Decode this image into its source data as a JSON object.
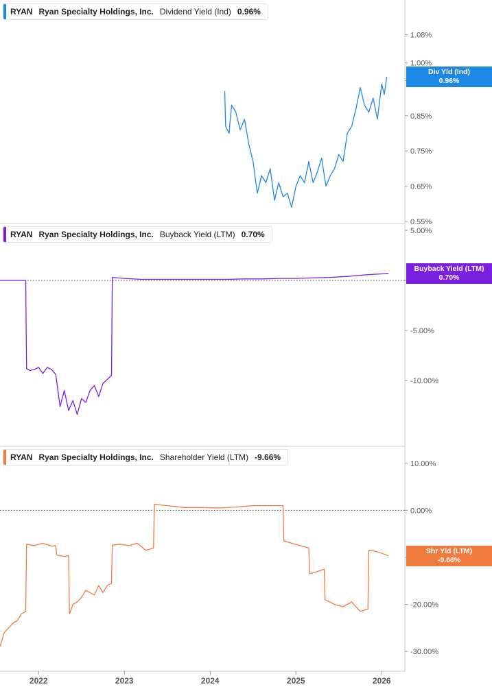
{
  "chart_data": [
    {
      "type": "line",
      "ticker": "RYAN",
      "company": "Ryan Specialty Holdings, Inc.",
      "metric": "Dividend Yield (Ind)",
      "current_value": "0.96%",
      "tag": {
        "label": "Div Yld (Ind)",
        "value": "0.96%"
      },
      "color": "#1e88e5",
      "ylim": [
        0.55,
        1.12
      ],
      "y_ticks": [
        {
          "value": 1.08,
          "label": "1.08%"
        },
        {
          "value": 1.0,
          "label": "1.00%"
        },
        {
          "value": 0.95,
          "label": "0.95%"
        },
        {
          "value": 0.85,
          "label": "0.85%"
        },
        {
          "value": 0.75,
          "label": "0.75%"
        },
        {
          "value": 0.65,
          "label": "0.65%"
        },
        {
          "value": 0.55,
          "label": "0.55%"
        }
      ],
      "x": [
        2024.17,
        2024.18,
        2024.22,
        2024.25,
        2024.3,
        2024.35,
        2024.4,
        2024.45,
        2024.5,
        2024.55,
        2024.6,
        2024.65,
        2024.7,
        2024.75,
        2024.8,
        2024.85,
        2024.9,
        2024.95,
        2025.0,
        2025.05,
        2025.1,
        2025.15,
        2025.2,
        2025.25,
        2025.3,
        2025.35,
        2025.4,
        2025.45,
        2025.5,
        2025.55,
        2025.6,
        2025.65,
        2025.7,
        2025.75,
        2025.8,
        2025.85,
        2025.9,
        2025.95,
        2026.0,
        2026.03,
        2026.06
      ],
      "values": [
        0.92,
        0.82,
        0.8,
        0.88,
        0.86,
        0.81,
        0.84,
        0.77,
        0.72,
        0.63,
        0.68,
        0.66,
        0.7,
        0.61,
        0.66,
        0.62,
        0.63,
        0.59,
        0.65,
        0.68,
        0.66,
        0.72,
        0.66,
        0.69,
        0.73,
        0.65,
        0.68,
        0.7,
        0.74,
        0.72,
        0.8,
        0.82,
        0.87,
        0.93,
        0.88,
        0.86,
        0.9,
        0.84,
        0.94,
        0.91,
        0.96
      ]
    },
    {
      "type": "line",
      "ticker": "RYAN",
      "company": "Ryan Specialty Holdings, Inc.",
      "metric": "Buyback Yield (LTM)",
      "current_value": "0.70%",
      "tag": {
        "label": "Buyback Yield (LTM)",
        "value": "0.70%"
      },
      "color": "#7b1fe0",
      "ylim": [
        -15,
        5
      ],
      "zero_line": true,
      "y_ticks": [
        {
          "value": 5,
          "label": "5.00%"
        },
        {
          "value": 0,
          "label": "0.00%"
        },
        {
          "value": -5,
          "label": "-5.00%"
        },
        {
          "value": -10,
          "label": "-10.00%"
        }
      ],
      "x": [
        2021.55,
        2021.7,
        2021.85,
        2021.86,
        2021.9,
        2021.95,
        2022.0,
        2022.05,
        2022.1,
        2022.15,
        2022.2,
        2022.25,
        2022.3,
        2022.35,
        2022.4,
        2022.45,
        2022.5,
        2022.55,
        2022.6,
        2022.65,
        2022.7,
        2022.75,
        2022.8,
        2022.85,
        2022.86,
        2023.0,
        2023.2,
        2023.4,
        2023.6,
        2023.8,
        2024.0,
        2024.2,
        2024.4,
        2024.6,
        2024.8,
        2025.0,
        2025.2,
        2025.4,
        2025.6,
        2025.8,
        2025.9,
        2026.0,
        2026.08
      ],
      "values": [
        0.0,
        0.0,
        0.0,
        -8.8,
        -9.0,
        -8.9,
        -8.7,
        -9.3,
        -8.7,
        -8.9,
        -9.4,
        -12.6,
        -11.0,
        -13.0,
        -12.0,
        -13.4,
        -11.8,
        -12.2,
        -11.0,
        -10.5,
        -11.6,
        -10.3,
        -9.9,
        -9.5,
        0.3,
        0.2,
        0.1,
        0.1,
        0.1,
        0.1,
        0.1,
        0.1,
        0.15,
        0.15,
        0.2,
        0.2,
        0.25,
        0.3,
        0.4,
        0.55,
        0.6,
        0.65,
        0.7
      ]
    },
    {
      "type": "line",
      "ticker": "RYAN",
      "company": "Ryan Specialty Holdings, Inc.",
      "metric": "Shareholder Yield (LTM)",
      "current_value": "-9.66%",
      "tag": {
        "label": "Shr Yld (LTM)",
        "value": "-9.66%"
      },
      "color": "#f07b3f",
      "ylim": [
        -31,
        11
      ],
      "zero_line": true,
      "y_ticks": [
        {
          "value": 10,
          "label": "10.00%"
        },
        {
          "value": 0,
          "label": "0.00%"
        },
        {
          "value": -10,
          "label": "-10.00%"
        },
        {
          "value": -20,
          "label": "-20.00%"
        },
        {
          "value": -30,
          "label": "-30.00%"
        }
      ],
      "x": [
        2021.55,
        2021.6,
        2021.65,
        2021.7,
        2021.75,
        2021.8,
        2021.85,
        2021.86,
        2021.95,
        2022.05,
        2022.15,
        2022.2,
        2022.21,
        2022.3,
        2022.35,
        2022.36,
        2022.4,
        2022.45,
        2022.5,
        2022.55,
        2022.6,
        2022.65,
        2022.7,
        2022.75,
        2022.8,
        2022.85,
        2022.86,
        2022.95,
        2023.05,
        2023.15,
        2023.25,
        2023.34,
        2023.35,
        2023.5,
        2023.7,
        2023.9,
        2024.1,
        2024.3,
        2024.5,
        2024.7,
        2024.85,
        2024.86,
        2024.95,
        2025.05,
        2025.15,
        2025.16,
        2025.25,
        2025.33,
        2025.34,
        2025.45,
        2025.55,
        2025.65,
        2025.75,
        2025.84,
        2025.85,
        2025.95,
        2026.08
      ],
      "values": [
        -29.0,
        -26.0,
        -25.0,
        -24.0,
        -23.5,
        -22.0,
        -21.5,
        -7.2,
        -7.5,
        -7.0,
        -7.6,
        -7.5,
        -9.5,
        -9.8,
        -9.6,
        -22.0,
        -20.0,
        -19.5,
        -18.5,
        -17.0,
        -17.5,
        -18.0,
        -16.0,
        -17.5,
        -16.0,
        -15.5,
        -7.4,
        -7.2,
        -7.5,
        -7.0,
        -8.5,
        -8.0,
        1.3,
        1.0,
        0.6,
        0.6,
        0.5,
        0.7,
        1.0,
        1.0,
        1.0,
        -6.5,
        -7.0,
        -7.5,
        -8.0,
        -13.5,
        -13.0,
        -12.5,
        -19.0,
        -20.0,
        -20.5,
        -19.5,
        -21.5,
        -21.0,
        -8.5,
        -8.8,
        -9.66
      ]
    }
  ],
  "x_axis": {
    "ticks": [
      {
        "value": 2022.0,
        "label": "2022"
      },
      {
        "value": 2023.0,
        "label": "2023"
      },
      {
        "value": 2024.0,
        "label": "2024"
      },
      {
        "value": 2025.0,
        "label": "2025"
      },
      {
        "value": 2026.0,
        "label": "2026"
      }
    ],
    "xlim": [
      2021.55,
      2026.27
    ]
  },
  "colors": {
    "axis_text": "#555555",
    "grid_line": "#d9d9d9",
    "zero_line": "#444444"
  }
}
